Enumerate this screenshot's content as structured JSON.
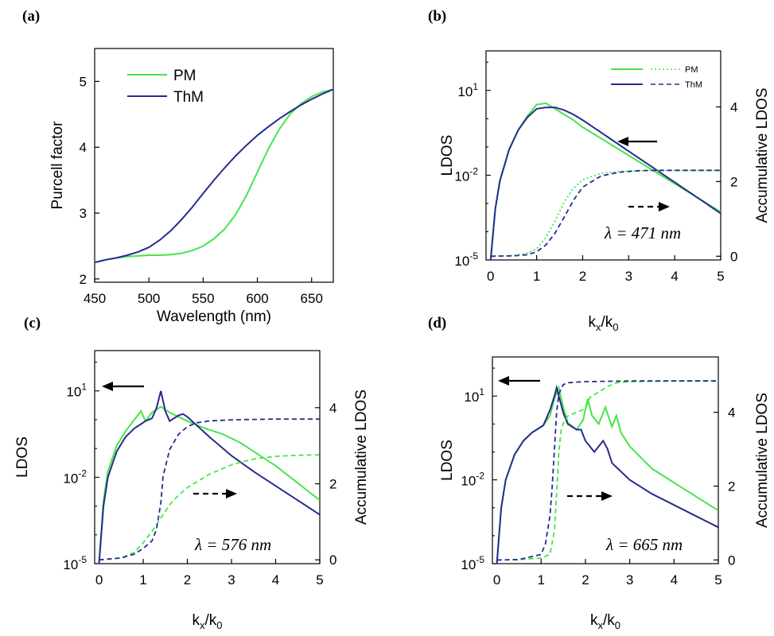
{
  "colors": {
    "pm": "#45e64a",
    "thm": "#262b90",
    "axis": "#000000"
  },
  "chart_data": [
    {
      "panel": "(a)",
      "type": "line",
      "xlabel": "Wavelength (nm)",
      "ylabel": "Purcell factor",
      "xlim": [
        450,
        670
      ],
      "ylim": [
        1.95,
        5.5
      ],
      "xticks": [
        450,
        500,
        550,
        600,
        650
      ],
      "yticks": [
        2,
        3,
        4,
        5
      ],
      "legend": {
        "placement": "top-left"
      },
      "series": [
        {
          "name": "PM",
          "style": "solid",
          "x": [
            450,
            460,
            470,
            480,
            490,
            500,
            510,
            520,
            530,
            540,
            550,
            560,
            570,
            580,
            590,
            600,
            610,
            620,
            630,
            640,
            650,
            660,
            670
          ],
          "y": [
            2.25,
            2.29,
            2.32,
            2.34,
            2.35,
            2.36,
            2.36,
            2.37,
            2.39,
            2.43,
            2.5,
            2.61,
            2.76,
            2.98,
            3.27,
            3.62,
            3.97,
            4.27,
            4.5,
            4.66,
            4.77,
            4.84,
            4.88
          ]
        },
        {
          "name": "ThM",
          "style": "solid",
          "x": [
            450,
            460,
            470,
            480,
            490,
            500,
            510,
            520,
            530,
            540,
            550,
            560,
            570,
            580,
            590,
            600,
            610,
            620,
            630,
            640,
            650,
            660,
            670
          ],
          "y": [
            2.25,
            2.29,
            2.32,
            2.36,
            2.41,
            2.48,
            2.59,
            2.73,
            2.9,
            3.09,
            3.3,
            3.5,
            3.69,
            3.87,
            4.03,
            4.18,
            4.31,
            4.43,
            4.54,
            4.64,
            4.73,
            4.81,
            4.88
          ]
        }
      ]
    },
    {
      "panel": "(b)",
      "type": "line",
      "xlabel": "kx/k0",
      "ylabel": "LDOS",
      "y2label": "Accumulative LDOS",
      "xlim": [
        -0.1,
        5
      ],
      "ylim_log10": [
        -5,
        2.4
      ],
      "y2lim": [
        -0.1,
        5.5
      ],
      "xticks": [
        0,
        1,
        2,
        3,
        4,
        5
      ],
      "yticks": [
        "10^1",
        "10^-2",
        "10^-5"
      ],
      "y2ticks": [
        0,
        2,
        4
      ],
      "annotation": "λ = 471 nm",
      "legend": {
        "placement": "top-right",
        "entries": [
          "PM",
          "ThM"
        ]
      },
      "series": [
        {
          "name": "PM",
          "axis": "left",
          "style": "solid",
          "x": [
            0,
            0.1,
            0.2,
            0.4,
            0.6,
            0.8,
            1.0,
            1.2,
            1.4,
            1.6,
            1.8,
            2.0,
            2.5,
            3.0,
            3.5,
            4.0,
            4.5,
            5.0
          ],
          "log10y": [
            -5.0,
            -3.2,
            -2.2,
            -1.1,
            -0.4,
            0.1,
            0.5,
            0.55,
            0.35,
            0.15,
            -0.05,
            -0.3,
            -0.8,
            -1.3,
            -1.8,
            -2.3,
            -2.8,
            -3.3
          ]
        },
        {
          "name": "ThM",
          "axis": "left",
          "style": "solid",
          "x": [
            0,
            0.1,
            0.2,
            0.4,
            0.6,
            0.8,
            1.0,
            1.2,
            1.4,
            1.6,
            1.8,
            2.0,
            2.5,
            3.0,
            3.5,
            4.0,
            4.5,
            5.0
          ],
          "log10y": [
            -5.0,
            -3.2,
            -2.2,
            -1.1,
            -0.4,
            0.05,
            0.35,
            0.4,
            0.4,
            0.3,
            0.15,
            -0.05,
            -0.6,
            -1.15,
            -1.7,
            -2.25,
            -2.8,
            -3.35
          ]
        },
        {
          "name": "PM",
          "axis": "right",
          "style": "dotted",
          "x": [
            0,
            0.5,
            0.8,
            1.0,
            1.2,
            1.4,
            1.6,
            1.8,
            2.0,
            2.4,
            2.8,
            3.2,
            3.6,
            4.0,
            4.5,
            5.0
          ],
          "y": [
            0,
            0.02,
            0.08,
            0.2,
            0.5,
            0.95,
            1.45,
            1.82,
            2.05,
            2.22,
            2.27,
            2.29,
            2.3,
            2.3,
            2.3,
            2.3
          ]
        },
        {
          "name": "ThM",
          "axis": "right",
          "style": "dashed",
          "x": [
            0,
            0.5,
            0.8,
            1.0,
            1.2,
            1.4,
            1.6,
            1.8,
            2.0,
            2.4,
            2.8,
            3.2,
            3.6,
            4.0,
            4.5,
            5.0
          ],
          "y": [
            0,
            0.01,
            0.04,
            0.12,
            0.3,
            0.62,
            1.05,
            1.5,
            1.85,
            2.15,
            2.25,
            2.29,
            2.3,
            2.3,
            2.3,
            2.3
          ]
        }
      ]
    },
    {
      "panel": "(c)",
      "type": "line",
      "xlabel": "kx/k0",
      "ylabel": "LDOS",
      "y2label": "Accumulative LDOS",
      "xlim": [
        -0.1,
        5
      ],
      "ylim_log10": [
        -5,
        2.4
      ],
      "y2lim": [
        -0.1,
        5.5
      ],
      "xticks": [
        0,
        1,
        2,
        3,
        4,
        5
      ],
      "yticks": [
        "10^1",
        "10^-2",
        "10^-5"
      ],
      "y2ticks": [
        0,
        2,
        4
      ],
      "annotation": "λ = 576 nm",
      "series": [
        {
          "name": "PM",
          "axis": "left",
          "style": "solid",
          "x": [
            0,
            0.1,
            0.2,
            0.4,
            0.6,
            0.8,
            0.95,
            1.05,
            1.2,
            1.4,
            1.6,
            1.8,
            2.0,
            2.4,
            2.8,
            3.2,
            3.6,
            4.0,
            4.5,
            5.0
          ],
          "log10y": [
            -5.0,
            -2.8,
            -1.8,
            -0.9,
            -0.4,
            0,
            0.3,
            -0.05,
            0.25,
            0.45,
            0.25,
            0.1,
            -0.05,
            -0.3,
            -0.5,
            -0.8,
            -1.2,
            -1.6,
            -2.2,
            -2.8
          ]
        },
        {
          "name": "ThM",
          "axis": "left",
          "style": "solid",
          "x": [
            0,
            0.1,
            0.2,
            0.4,
            0.6,
            0.8,
            0.95,
            1.05,
            1.2,
            1.3,
            1.4,
            1.5,
            1.6,
            1.8,
            1.9,
            2.0,
            2.5,
            3.0,
            3.5,
            4.0,
            4.5,
            5.0
          ],
          "log10y": [
            -5.0,
            -3.0,
            -2.0,
            -1.1,
            -0.6,
            -0.3,
            -0.15,
            -0.05,
            0.05,
            0.4,
            1.0,
            0.3,
            -0.05,
            0.15,
            0.2,
            0.1,
            -0.6,
            -1.25,
            -1.8,
            -2.3,
            -2.8,
            -3.3
          ]
        },
        {
          "name": "PM",
          "axis": "right",
          "style": "dashed",
          "x": [
            0,
            0.5,
            0.8,
            1.0,
            1.2,
            1.4,
            1.6,
            1.8,
            2.0,
            2.5,
            3.0,
            3.5,
            4.0,
            4.5,
            5.0
          ],
          "y": [
            0,
            0.05,
            0.2,
            0.45,
            0.75,
            1.1,
            1.45,
            1.7,
            1.9,
            2.25,
            2.5,
            2.65,
            2.72,
            2.75,
            2.76
          ]
        },
        {
          "name": "ThM",
          "axis": "right",
          "style": "dashed",
          "x": [
            0,
            0.5,
            0.8,
            1.0,
            1.2,
            1.3,
            1.4,
            1.45,
            1.6,
            1.8,
            2.0,
            2.2,
            2.5,
            3.0,
            3.5,
            4.0,
            4.5,
            5.0
          ],
          "y": [
            0,
            0.05,
            0.15,
            0.3,
            0.5,
            0.8,
            1.5,
            2.2,
            2.9,
            3.3,
            3.5,
            3.6,
            3.65,
            3.68,
            3.69,
            3.7,
            3.7,
            3.7
          ]
        }
      ]
    },
    {
      "panel": "(d)",
      "type": "line",
      "xlabel": "kx/k0",
      "ylabel": "LDOS",
      "y2label": "Accumulative LDOS",
      "xlim": [
        -0.1,
        5
      ],
      "ylim_log10": [
        -5,
        2.4
      ],
      "y2lim": [
        -0.1,
        5.5
      ],
      "xticks": [
        0,
        1,
        2,
        3,
        4,
        5
      ],
      "yticks": [
        "10^1",
        "10^-2",
        "10^-5"
      ],
      "y2ticks": [
        0,
        2,
        4
      ],
      "annotation": "λ = 665 nm",
      "series": [
        {
          "name": "PM",
          "axis": "left",
          "style": "solid",
          "x": [
            0,
            0.1,
            0.2,
            0.4,
            0.6,
            0.8,
            0.95,
            1.05,
            1.2,
            1.3,
            1.4,
            1.5,
            1.6,
            1.8,
            1.95,
            2.05,
            2.15,
            2.3,
            2.45,
            2.6,
            2.7,
            2.8,
            3.0,
            3.5,
            4.0,
            4.5,
            5.0
          ],
          "log10y": [
            -5.0,
            -3.0,
            -2.0,
            -1.1,
            -0.6,
            -0.3,
            -0.15,
            -0.05,
            0.3,
            0.9,
            1.3,
            0.6,
            0.05,
            -0.2,
            0.15,
            0.9,
            0.3,
            0.0,
            0.6,
            -0.1,
            0.3,
            -0.3,
            -0.8,
            -1.6,
            -2.1,
            -2.6,
            -3.1
          ]
        },
        {
          "name": "ThM",
          "axis": "left",
          "style": "solid",
          "x": [
            0,
            0.1,
            0.2,
            0.4,
            0.6,
            0.8,
            0.95,
            1.05,
            1.2,
            1.3,
            1.35,
            1.4,
            1.5,
            1.6,
            1.8,
            1.9,
            2.0,
            2.2,
            2.4,
            2.5,
            2.6,
            3.0,
            3.5,
            4.0,
            4.5,
            5.0
          ],
          "log10y": [
            -5.0,
            -3.0,
            -2.0,
            -1.1,
            -0.6,
            -0.3,
            -0.15,
            -0.05,
            0.5,
            1.0,
            1.3,
            1.0,
            0.4,
            0.0,
            -0.2,
            -0.2,
            -0.6,
            -1.0,
            -0.6,
            -0.9,
            -1.4,
            -2.0,
            -2.5,
            -2.9,
            -3.3,
            -3.7
          ]
        },
        {
          "name": "PM",
          "axis": "right",
          "style": "dashed",
          "x": [
            0,
            0.5,
            1.0,
            1.2,
            1.3,
            1.35,
            1.4,
            1.45,
            1.5,
            1.6,
            1.8,
            2.0,
            2.1,
            2.3,
            2.5,
            2.7,
            3.0,
            3.5,
            4.0,
            4.5,
            5.0
          ],
          "y": [
            0,
            0.01,
            0.05,
            0.15,
            0.8,
            1.8,
            2.9,
            3.5,
            3.7,
            3.9,
            4.0,
            4.1,
            4.4,
            4.55,
            4.7,
            4.8,
            4.83,
            4.84,
            4.85,
            4.85,
            4.85
          ]
        },
        {
          "name": "ThM",
          "axis": "right",
          "style": "dashed",
          "x": [
            0,
            0.5,
            1.0,
            1.1,
            1.2,
            1.25,
            1.3,
            1.35,
            1.4,
            1.5,
            1.6,
            1.8,
            2.0,
            2.5,
            3.0,
            3.5,
            4.0,
            4.5,
            5.0
          ],
          "y": [
            0,
            0.01,
            0.15,
            0.45,
            1.2,
            2.0,
            3.0,
            4.0,
            4.5,
            4.75,
            4.8,
            4.82,
            4.83,
            4.84,
            4.85,
            4.85,
            4.85,
            4.85,
            4.85
          ]
        }
      ]
    }
  ]
}
